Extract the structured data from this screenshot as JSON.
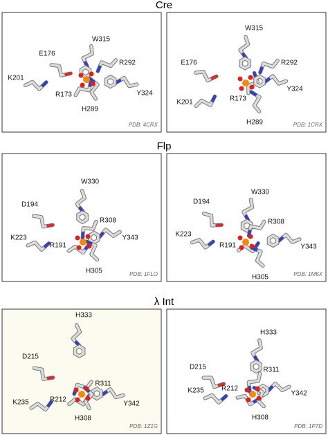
{
  "sections": [
    {
      "title": "Cre",
      "panels": [
        {
          "labels": [
            "W315",
            "E176",
            "R292",
            "K201",
            "R173",
            "Y324",
            "H289"
          ],
          "pdb": "PDB: 4CRX"
        },
        {
          "labels": [
            "W315",
            "E176",
            "R292",
            "K201",
            "R173",
            "Y324",
            "H289"
          ],
          "pdb": "PDB: 1CRX"
        }
      ]
    },
    {
      "title": "Flp",
      "panels": [
        {
          "labels": [
            "W330",
            "D194",
            "R308",
            "K223",
            "R191",
            "Y343",
            "H305"
          ],
          "pdb": "PDB: 1FLO"
        },
        {
          "labels": [
            "W330",
            "D194",
            "R308",
            "K223",
            "R191",
            "Y343",
            "H305"
          ],
          "pdb": "PDB: 1M6X"
        }
      ]
    },
    {
      "title": "λ Int",
      "panels": [
        {
          "labels": [
            "H333",
            "D215",
            "R311",
            "K235",
            "R212",
            "Y342",
            "H308"
          ],
          "pdb": "PDB: 1Z1G"
        },
        {
          "labels": [
            "H333",
            "D215",
            "R311",
            "K235",
            "R212",
            "Y342",
            "H308"
          ],
          "pdb": "PDB: 1P7D"
        }
      ]
    }
  ]
}
